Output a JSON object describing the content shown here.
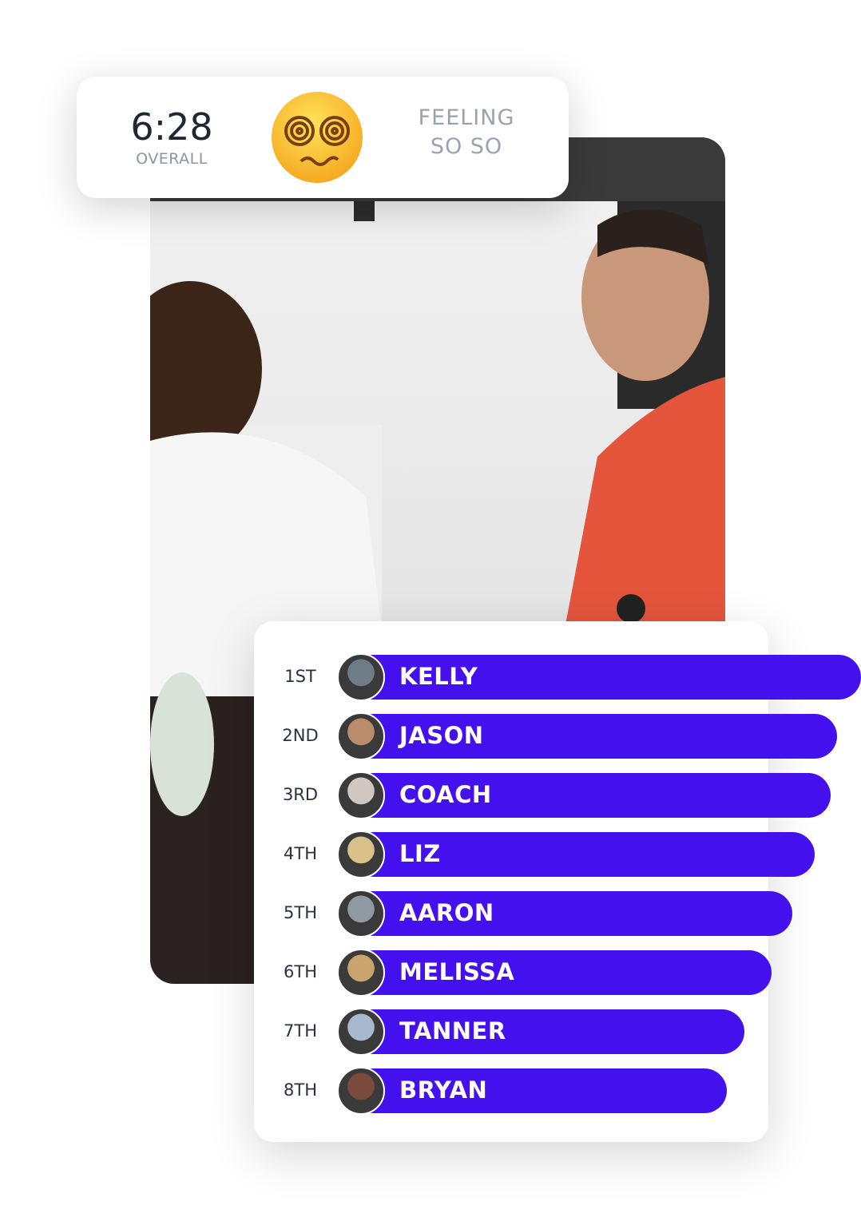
{
  "overall": {
    "time": "6:28",
    "label": "OVERALL"
  },
  "mood": {
    "line1": "FEELING",
    "line2": "SO SO"
  },
  "leaderboard": {
    "rows": [
      {
        "rank": "1ST",
        "name": "KELLY"
      },
      {
        "rank": "2ND",
        "name": "JASON"
      },
      {
        "rank": "3RD",
        "name": "COACH"
      },
      {
        "rank": "4TH",
        "name": "LIZ"
      },
      {
        "rank": "5TH",
        "name": "AARON"
      },
      {
        "rank": "6TH",
        "name": "MELISSA"
      },
      {
        "rank": "7TH",
        "name": "TANNER"
      },
      {
        "rank": "8TH",
        "name": "BRYAN"
      }
    ]
  }
}
